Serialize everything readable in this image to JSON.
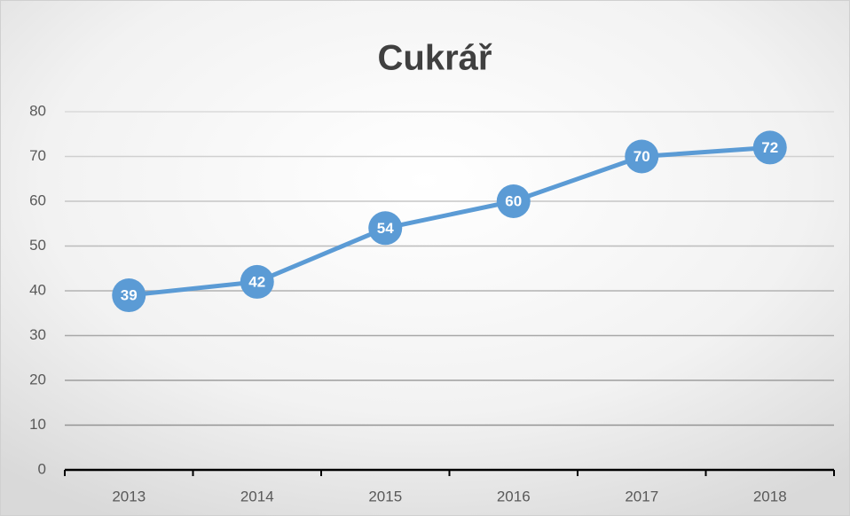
{
  "chart_data": {
    "type": "line",
    "title": "Cukrář",
    "categories": [
      "2013",
      "2014",
      "2015",
      "2016",
      "2017",
      "2018"
    ],
    "values": [
      39,
      42,
      54,
      60,
      70,
      72
    ],
    "color": "#5b9bd5",
    "ylim": [
      0,
      80
    ],
    "yticks": [
      0,
      10,
      20,
      30,
      40,
      50,
      60,
      70,
      80
    ],
    "grid": true
  }
}
